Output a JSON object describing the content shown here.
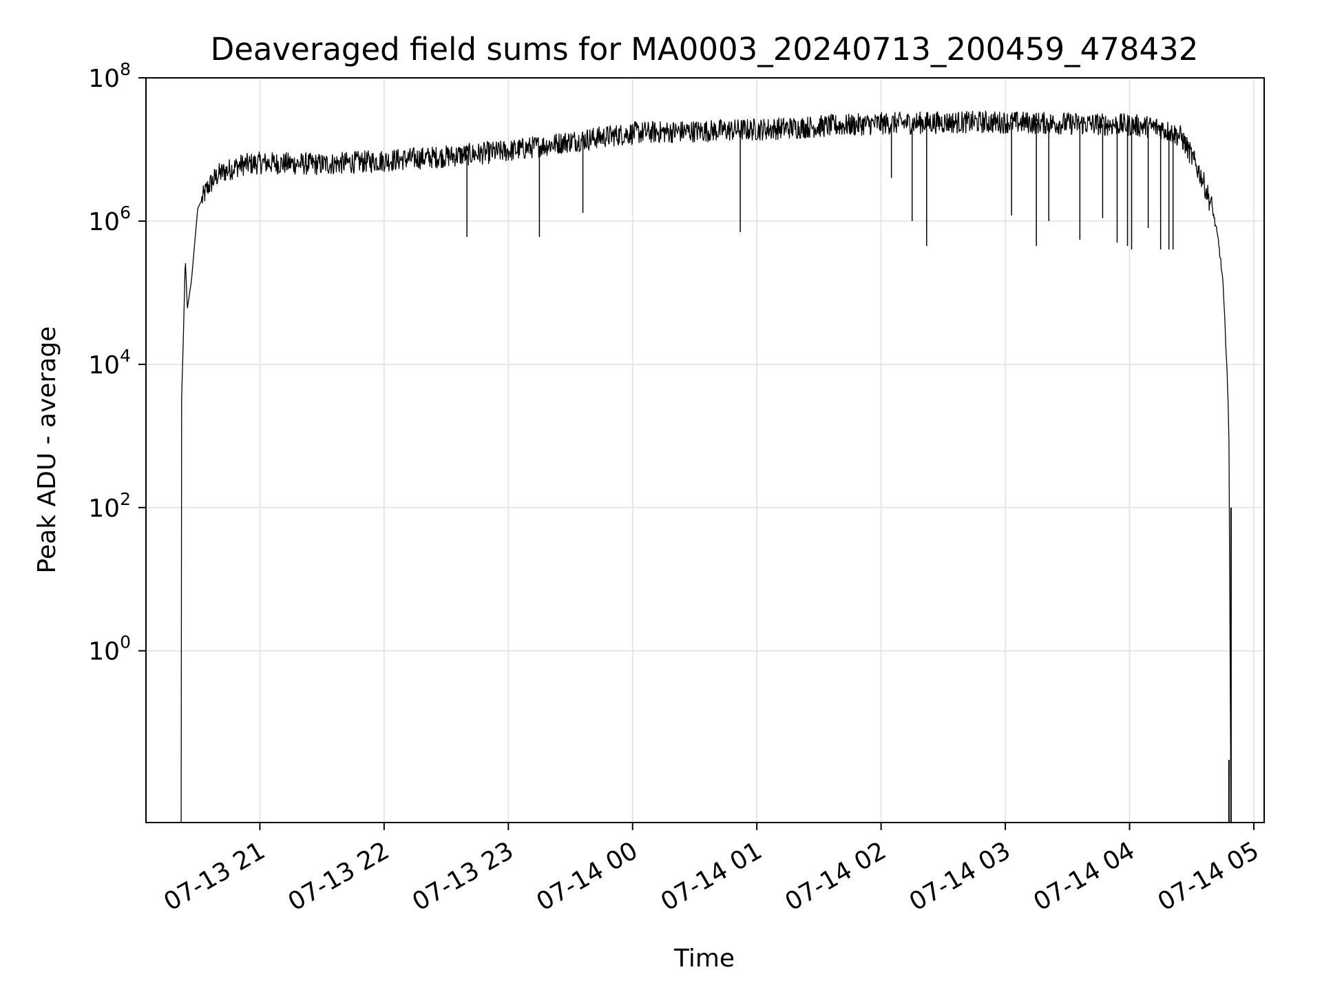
{
  "chart_data": {
    "type": "line",
    "title": "Deaveraged field sums for MA0003_20240713_200459_478432",
    "xlabel": "Time",
    "ylabel": "Peak ADU - average",
    "yscale": "log",
    "grid": true,
    "line_color": "#000000",
    "x_ticks": [
      "07-13 21",
      "07-13 22",
      "07-13 23",
      "07-14 00",
      "07-14 01",
      "07-14 02",
      "07-14 03",
      "07-14 04",
      "07-14 05"
    ],
    "y_ticks": [
      {
        "base": "10",
        "exp": "0"
      },
      {
        "base": "10",
        "exp": "2"
      },
      {
        "base": "10",
        "exp": "4"
      },
      {
        "base": "10",
        "exp": "6"
      },
      {
        "base": "10",
        "exp": "8"
      }
    ],
    "xlim": [
      "2024-07-13 20:05",
      "2024-07-14 05:05"
    ],
    "ylim": [
      0.004,
      100000000
    ],
    "series": [
      {
        "values": [
          [
            "2024-07-13 20:22",
            0.004
          ],
          [
            "2024-07-13 20:22",
            2000
          ],
          [
            "2024-07-13 20:23",
            20000
          ],
          [
            "2024-07-13 20:24",
            300000
          ],
          [
            "2024-07-13 20:25",
            60000
          ],
          [
            "2024-07-13 20:27",
            150000
          ],
          [
            "2024-07-13 20:30",
            1500000
          ],
          [
            "2024-07-13 20:35",
            3000000
          ],
          [
            "2024-07-13 20:40",
            4500000
          ],
          [
            "2024-07-13 20:50",
            6000000
          ],
          [
            "2024-07-13 21:00",
            6500000
          ],
          [
            "2024-07-13 21:30",
            6200000
          ],
          [
            "2024-07-13 22:00",
            7000000
          ],
          [
            "2024-07-13 22:30",
            8000000
          ],
          [
            "2024-07-13 23:00",
            9500000
          ],
          [
            "2024-07-13 23:30",
            13000000
          ],
          [
            "2024-07-14 00:00",
            17000000
          ],
          [
            "2024-07-14 00:30",
            18000000
          ],
          [
            "2024-07-14 01:00",
            19000000
          ],
          [
            "2024-07-14 01:30",
            21000000
          ],
          [
            "2024-07-14 02:00",
            23000000
          ],
          [
            "2024-07-14 02:30",
            24000000
          ],
          [
            "2024-07-14 03:00",
            24000000
          ],
          [
            "2024-07-14 03:30",
            23000000
          ],
          [
            "2024-07-14 04:00",
            22000000
          ],
          [
            "2024-07-14 04:15",
            20000000
          ],
          [
            "2024-07-14 04:25",
            15000000
          ],
          [
            "2024-07-14 04:30",
            8000000
          ],
          [
            "2024-07-14 04:35",
            4000000
          ],
          [
            "2024-07-14 04:40",
            1500000
          ],
          [
            "2024-07-14 04:43",
            500000
          ],
          [
            "2024-07-14 04:45",
            150000
          ],
          [
            "2024-07-14 04:47",
            10000
          ],
          [
            "2024-07-14 04:48",
            1000
          ],
          [
            "2024-07-14 04:49",
            0.004
          ]
        ]
      }
    ],
    "dips": [
      [
        "2024-07-13 22:40",
        600000
      ],
      [
        "2024-07-13 23:15",
        600000
      ],
      [
        "2024-07-13 23:36",
        1300000
      ],
      [
        "2024-07-14 00:52",
        700000
      ],
      [
        "2024-07-14 02:05",
        4000000
      ],
      [
        "2024-07-14 02:15",
        1000000
      ],
      [
        "2024-07-14 02:22",
        450000
      ],
      [
        "2024-07-14 03:03",
        1200000
      ],
      [
        "2024-07-14 03:15",
        450000
      ],
      [
        "2024-07-14 03:21",
        1000000
      ],
      [
        "2024-07-14 03:36",
        550000
      ],
      [
        "2024-07-14 03:47",
        1100000
      ],
      [
        "2024-07-14 03:54",
        500000
      ],
      [
        "2024-07-14 03:59",
        450000
      ],
      [
        "2024-07-14 04:01",
        400000
      ],
      [
        "2024-07-14 04:09",
        800000
      ],
      [
        "2024-07-14 04:15",
        400000
      ],
      [
        "2024-07-14 04:19",
        400000
      ],
      [
        "2024-07-14 04:21",
        400000
      ]
    ],
    "end_spikes": [
      [
        "2024-07-14 04:48",
        0.03
      ],
      [
        "2024-07-14 04:49",
        100
      ]
    ]
  }
}
